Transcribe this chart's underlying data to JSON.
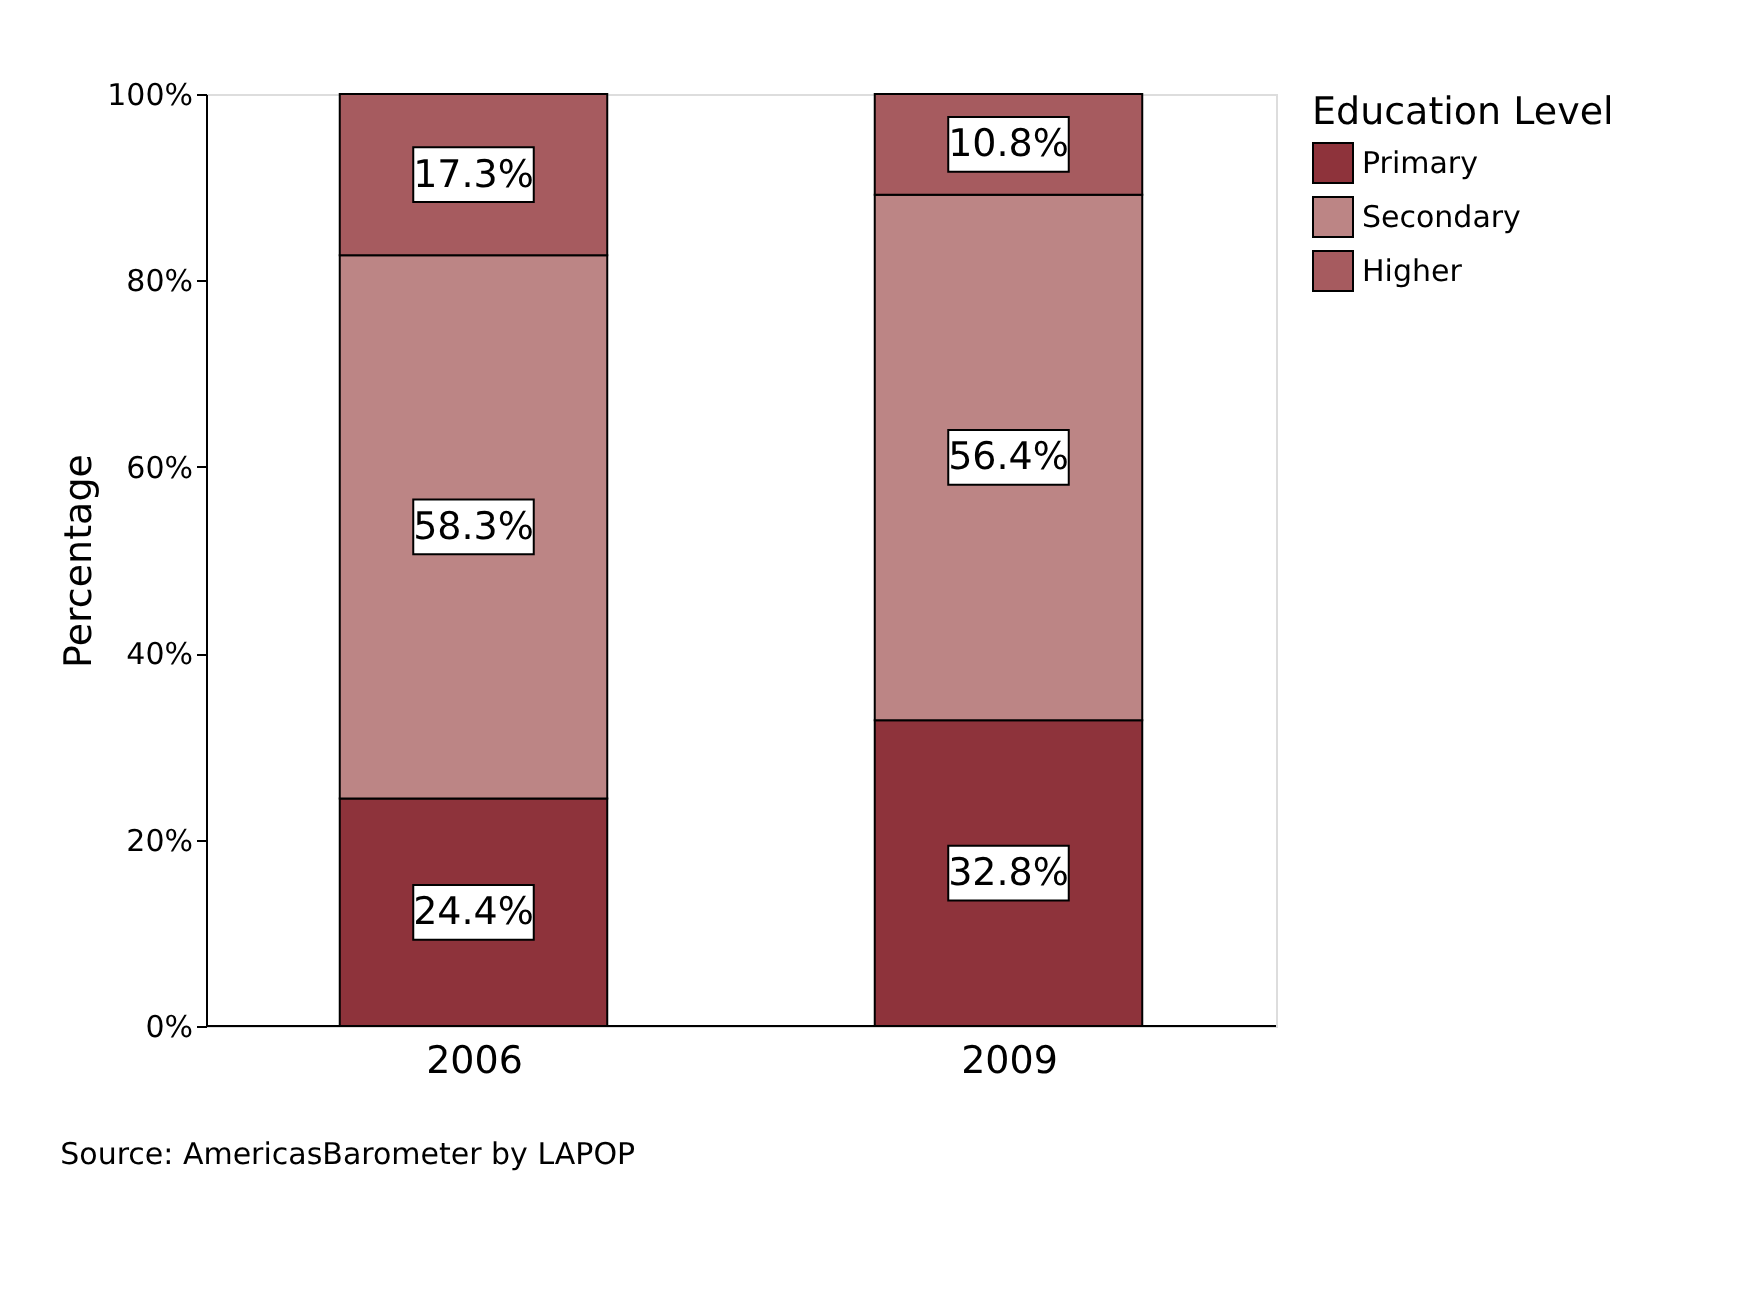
{
  "chart_data": {
    "type": "bar",
    "stacked": true,
    "ylabel": "Percentage",
    "legend_title": "Education Level",
    "legend": "top right",
    "categories": [
      "2006",
      "2009"
    ],
    "series": [
      {
        "name": "Primary",
        "color": "#8e333b",
        "values": [
          24.4,
          32.8
        ],
        "value_labels": [
          "24.4%",
          "32.8%"
        ]
      },
      {
        "name": "Secondary",
        "color": "#bc8585",
        "values": [
          58.3,
          56.4
        ],
        "value_labels": [
          "58.3%",
          "56.4%"
        ]
      },
      {
        "name": "Higher",
        "color": "#a65b5f",
        "values": [
          17.3,
          10.8
        ],
        "value_labels": [
          "17.3%",
          "10.8%"
        ]
      }
    ],
    "ylim": [
      0,
      100
    ],
    "yticks": [
      {
        "value": 0,
        "label": "0%"
      },
      {
        "value": 20,
        "label": "20%"
      },
      {
        "value": 40,
        "label": "40%"
      },
      {
        "value": 60,
        "label": "60%"
      },
      {
        "value": 80,
        "label": "80%"
      },
      {
        "value": 100,
        "label": "100%"
      }
    ],
    "grid": false,
    "annotations": [
      "Source: AmericasBarometer by LAPOP"
    ]
  }
}
